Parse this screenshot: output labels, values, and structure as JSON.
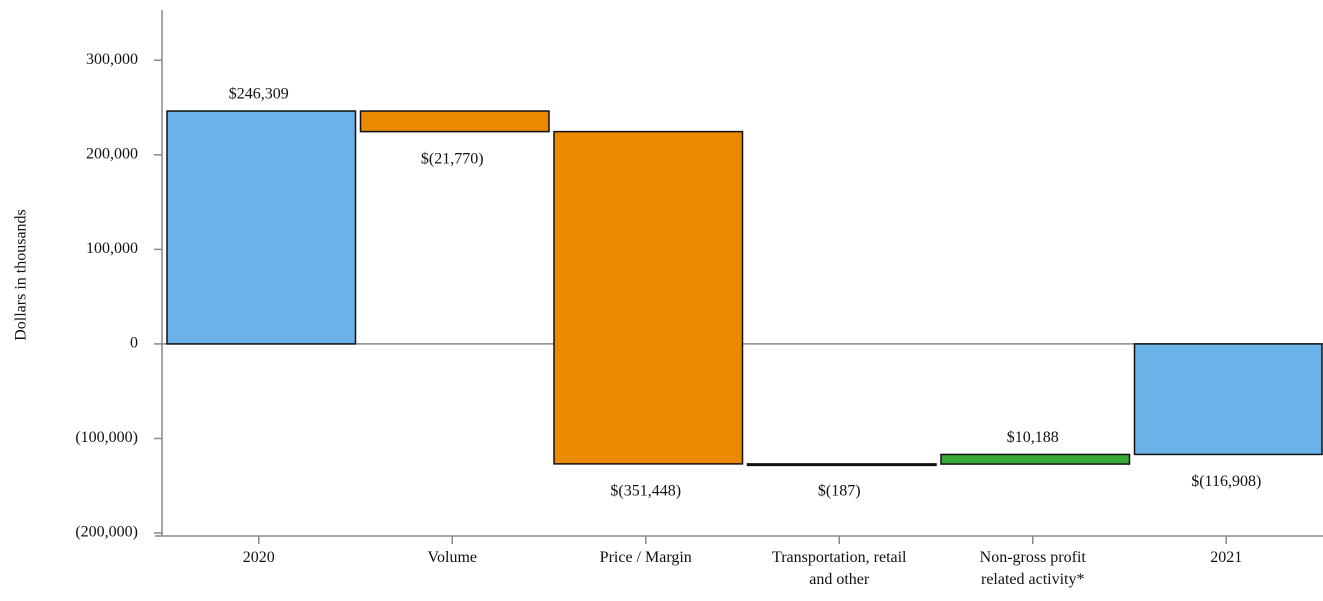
{
  "chart_data": {
    "type": "waterfall",
    "y_label": "Dollars in thousands",
    "categories": [
      "2020",
      "Volume",
      "Price / Margin",
      "Transportation, retail and other",
      "Non-gross profit related activity*",
      "2021"
    ],
    "values": [
      246309,
      -21770,
      -351448,
      -187,
      10188,
      -116908
    ],
    "value_labels": [
      "$246,309",
      "$(21,770)",
      "$(351,448)",
      "$(187)",
      "$10,188",
      "$(116,908)"
    ],
    "is_total": [
      true,
      false,
      false,
      false,
      false,
      true
    ],
    "colors": [
      "#6ab2e7",
      "#eb8a00",
      "#eb8a00",
      "#eb8a00",
      "#3aa935",
      "#6ab2e7"
    ],
    "ylim": [
      -200000,
      350000
    ],
    "yticks": [
      {
        "value": -200000,
        "label": "(200,000)"
      },
      {
        "value": -100000,
        "label": "(100,000)"
      },
      0,
      {
        "value": 100000,
        "label": "100,000"
      },
      {
        "value": 200000,
        "label": "200,000"
      },
      {
        "value": 300000,
        "label": "300,000"
      }
    ]
  }
}
